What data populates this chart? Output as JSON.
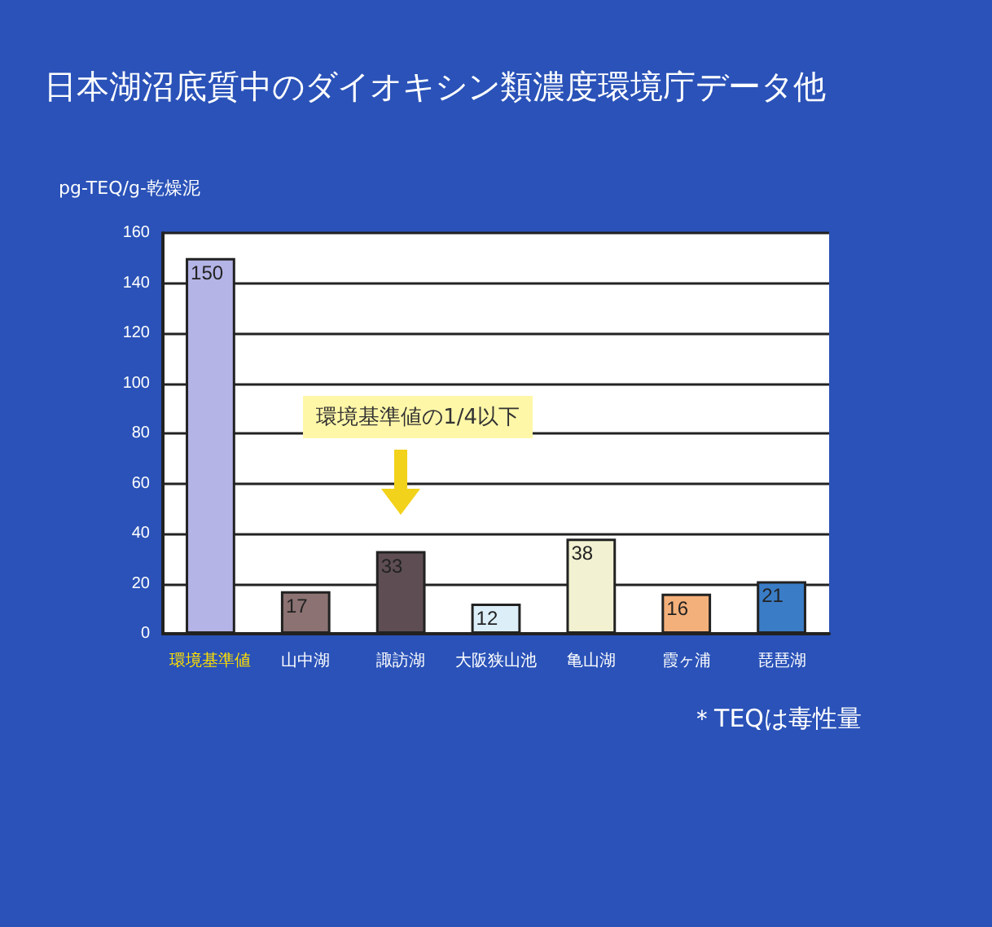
{
  "chart_data": {
    "type": "bar",
    "title": "日本湖沼底質中のダイオキシン類濃度環境庁データ他",
    "ylabel": "pg-TEQ/g-乾燥泥",
    "categories": [
      "環境基準値",
      "山中湖",
      "諏訪湖",
      "大阪狭山池",
      "亀山湖",
      "霞ヶ浦",
      "琵琶湖"
    ],
    "values": [
      150,
      17,
      33,
      12,
      38,
      16,
      21
    ],
    "colors": [
      "#b4b4e6",
      "#8c7272",
      "#5e4e54",
      "#dceef8",
      "#f2f2d2",
      "#f4b07a",
      "#3a7cc6"
    ],
    "ylim": [
      0,
      160
    ],
    "yticks": [
      0,
      20,
      40,
      60,
      80,
      100,
      120,
      140,
      160
    ],
    "grid": "y",
    "data_labels": true,
    "annotations": [
      "環境基準値の1/4以下",
      "＊TEQは毒性量"
    ]
  }
}
